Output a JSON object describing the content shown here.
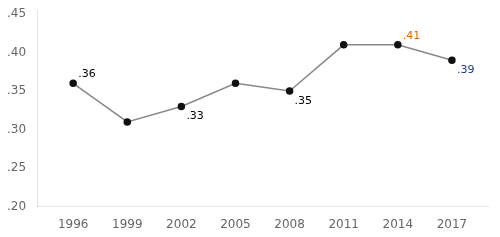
{
  "chart_data": {
    "type": "line",
    "x": [
      1996,
      1999,
      2002,
      2005,
      2008,
      2011,
      2014,
      2017
    ],
    "values": [
      0.36,
      0.31,
      0.33,
      0.36,
      0.35,
      0.41,
      0.41,
      0.39
    ],
    "color": "#888888",
    "colors": [
      "#111111",
      "#111111",
      "#111111",
      "#111111",
      "#111111",
      "#111111",
      "#111111",
      "#111111"
    ],
    "marker": "circle",
    "xlim": [
      1994,
      2019
    ],
    "xticks": [
      1996,
      1999,
      2002,
      2005,
      2008,
      2011,
      2014,
      2017
    ],
    "ylim": [
      0.2,
      0.455
    ],
    "yticks": [
      {
        "value": 0.2,
        "label": ".20"
      },
      {
        "value": 0.25,
        "label": ".25"
      },
      {
        "value": 0.3,
        "label": ".30"
      },
      {
        "value": 0.35,
        "label": ".35"
      },
      {
        "value": 0.4,
        "label": ".40"
      },
      {
        "value": 0.45,
        "label": ".45"
      }
    ],
    "grid": false,
    "annotations": [
      {
        "text": ".36",
        "x": 1996,
        "y": 0.36,
        "color": "#000000"
      },
      {
        "text": ".33",
        "x": 2002,
        "y": 0.33,
        "color": "#000000"
      },
      {
        "text": ".35",
        "x": 2008,
        "y": 0.35,
        "color": "#000000"
      },
      {
        "text": ".41",
        "x": 2014,
        "y": 0.41,
        "color": "#d46a00"
      },
      {
        "text": ".39",
        "x": 2017,
        "y": 0.39,
        "color": "#1a3a8a"
      }
    ]
  }
}
